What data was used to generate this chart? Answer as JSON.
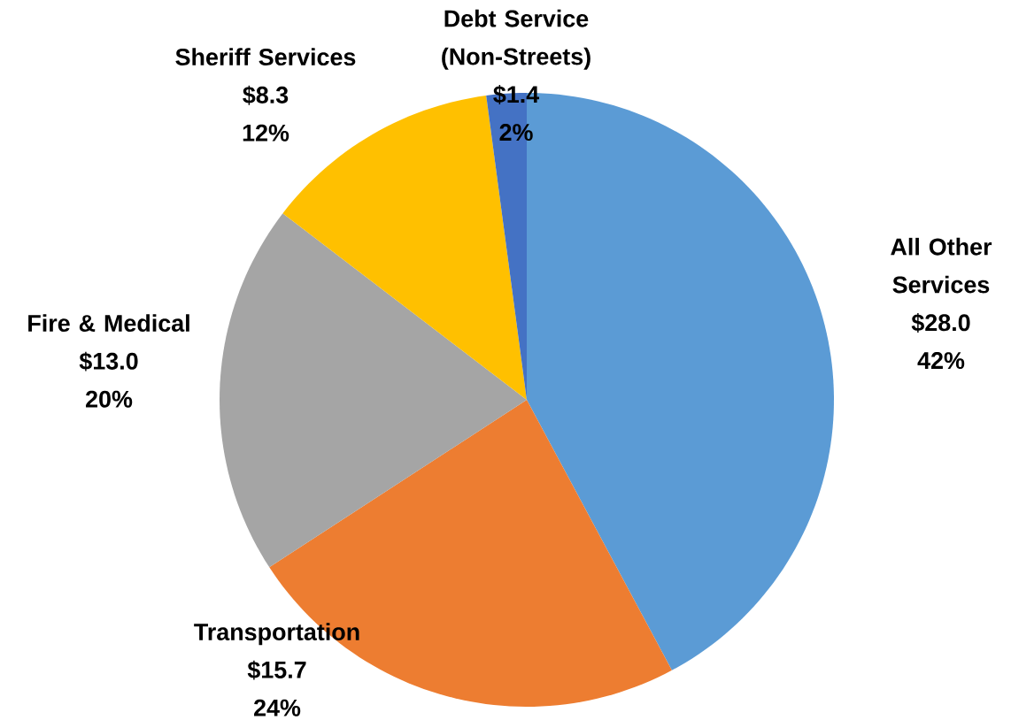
{
  "chart_data": {
    "type": "pie",
    "categories": [
      "All Other Services",
      "Transportation",
      "Fire & Medical",
      "Sheriff Services",
      "Debt Service (Non-Streets)"
    ],
    "values": [
      28.0,
      15.7,
      13.0,
      8.3,
      1.4
    ],
    "colors": [
      "#5b9bd5",
      "#ed7d31",
      "#a5a5a5",
      "#ffc000",
      "#4472c4"
    ],
    "value_labels": [
      "$28.0",
      "$15.7",
      "$13.0",
      "$8.3",
      "$1.4"
    ],
    "annotations": [
      "42%",
      "24%",
      "20%",
      "12%",
      "2%"
    ]
  }
}
